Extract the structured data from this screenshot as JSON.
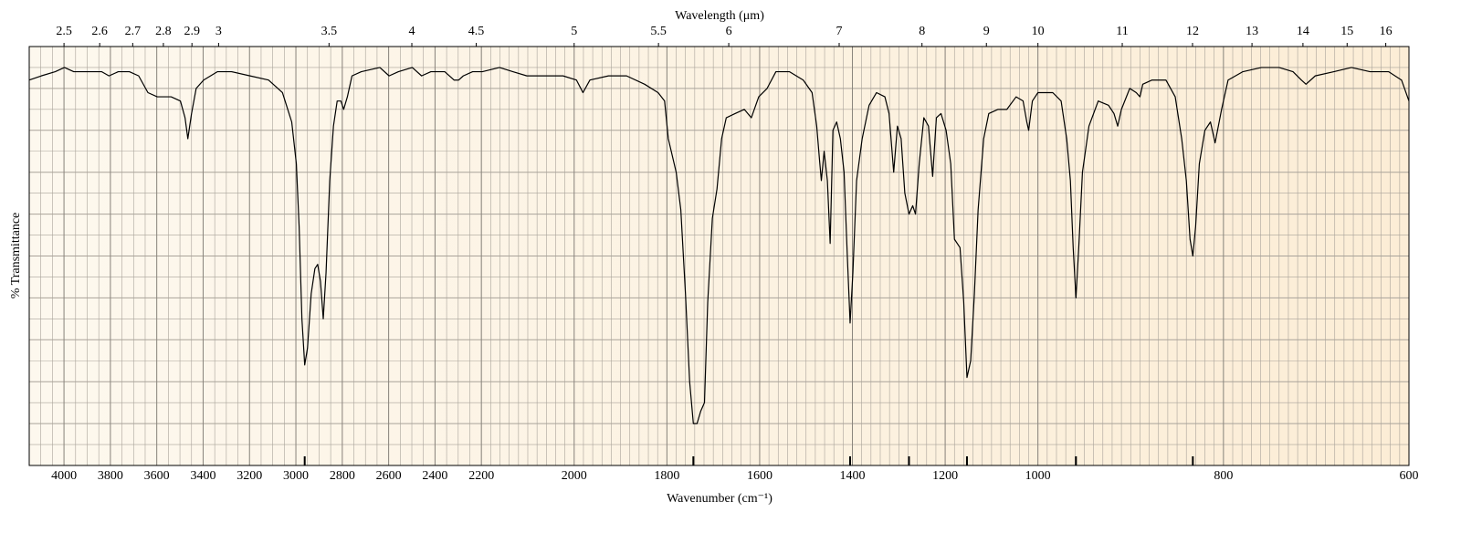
{
  "chart_data": {
    "type": "line",
    "xlabel": "Wavenumber (cm⁻¹)",
    "x2label": "Wavelength (μm)",
    "ylabel": "% Transmittance",
    "xlim": [
      4150,
      600
    ],
    "x_scale_breaks": [
      2200,
      1000
    ],
    "ylim": [
      0,
      100
    ],
    "xticks": [
      4000,
      3800,
      3600,
      3400,
      3200,
      3000,
      2800,
      2600,
      2400,
      2200,
      2000,
      1800,
      1600,
      1400,
      1200,
      1000,
      800,
      600
    ],
    "x2ticks": [
      2.5,
      2.6,
      2.7,
      2.8,
      2.9,
      3,
      3.5,
      4,
      4.5,
      5,
      5.5,
      6,
      7,
      8,
      9,
      10,
      11,
      12,
      13,
      14,
      15,
      16
    ],
    "grid": true,
    "color": "#000000",
    "peak_markers": [
      2962,
      1743,
      1405,
      1278,
      1153,
      959,
      833
    ],
    "x": [
      4150,
      4098,
      4038,
      3998,
      3958,
      3898,
      3838,
      3806,
      3766,
      3718,
      3678,
      3638,
      3598,
      3538,
      3498,
      3478,
      3466,
      3450,
      3430,
      3398,
      3338,
      3278,
      3198,
      3118,
      3058,
      3018,
      2998,
      2986,
      2974,
      2962,
      2950,
      2934,
      2918,
      2906,
      2894,
      2882,
      2870,
      2854,
      2838,
      2822,
      2806,
      2794,
      2778,
      2758,
      2718,
      2638,
      2598,
      2558,
      2498,
      2458,
      2418,
      2358,
      2318,
      2298,
      2278,
      2238,
      2198,
      2161,
      2132,
      2102,
      2063,
      2024,
      1995,
      1981,
      1966,
      1926,
      1887,
      1848,
      1819,
      1805,
      1797,
      1780,
      1770,
      1760,
      1751,
      1743,
      1735,
      1727,
      1719,
      1712,
      1702,
      1692,
      1682,
      1672,
      1653,
      1633,
      1618,
      1602,
      1584,
      1565,
      1536,
      1506,
      1487,
      1477,
      1471,
      1467,
      1461,
      1454,
      1448,
      1442,
      1434,
      1426,
      1418,
      1411,
      1405,
      1399,
      1391,
      1379,
      1364,
      1348,
      1330,
      1321,
      1311,
      1303,
      1295,
      1287,
      1278,
      1270,
      1264,
      1256,
      1246,
      1236,
      1227,
      1219,
      1209,
      1198,
      1188,
      1180,
      1168,
      1160,
      1153,
      1145,
      1137,
      1129,
      1117,
      1106,
      1086,
      1067,
      1047,
      1032,
      1024,
      1020,
      1012,
      1000,
      984,
      975,
      969,
      965,
      962,
      959,
      956,
      952,
      945,
      935,
      924,
      918,
      914,
      910,
      901,
      894,
      890,
      887,
      877,
      862,
      852,
      845,
      840,
      836,
      833,
      830,
      826,
      820,
      814,
      809,
      802,
      795,
      779,
      759,
      740,
      725,
      716,
      711,
      701,
      681,
      662,
      642,
      622,
      608,
      600
    ],
    "values": [
      92,
      93,
      94,
      95,
      94,
      94,
      94,
      93,
      94,
      94,
      93,
      89,
      88,
      88,
      87,
      83,
      78,
      84,
      90,
      92,
      94,
      94,
      93,
      92,
      89,
      82,
      72,
      57,
      35,
      24,
      28,
      41,
      47,
      48,
      44,
      35,
      46,
      68,
      81,
      87,
      87,
      85,
      88,
      93,
      94,
      95,
      93,
      94,
      95,
      93,
      94,
      94,
      92,
      92,
      93,
      94,
      94,
      95,
      94,
      93,
      93,
      93,
      92,
      89,
      92,
      93,
      93,
      91,
      89,
      87,
      78,
      70,
      61,
      41,
      20,
      10,
      10,
      13,
      15,
      39,
      59,
      66,
      78,
      83,
      84,
      85,
      83,
      88,
      90,
      94,
      94,
      92,
      89,
      81,
      73,
      68,
      75,
      68,
      53,
      80,
      82,
      78,
      70,
      50,
      34,
      46,
      68,
      78,
      86,
      89,
      88,
      84,
      70,
      81,
      78,
      65,
      60,
      62,
      60,
      72,
      83,
      81,
      69,
      83,
      84,
      80,
      72,
      54,
      52,
      39,
      21,
      25,
      41,
      61,
      78,
      84,
      85,
      85,
      88,
      87,
      82,
      80,
      87,
      89,
      89,
      87,
      78,
      68,
      52,
      40,
      52,
      70,
      81,
      87,
      86,
      84,
      81,
      85,
      90,
      89,
      88,
      91,
      92,
      92,
      88,
      78,
      68,
      54,
      50,
      57,
      72,
      80,
      82,
      77,
      85,
      92,
      94,
      95,
      95,
      94,
      92,
      91,
      93,
      94,
      95,
      94,
      94,
      92,
      87
    ]
  }
}
